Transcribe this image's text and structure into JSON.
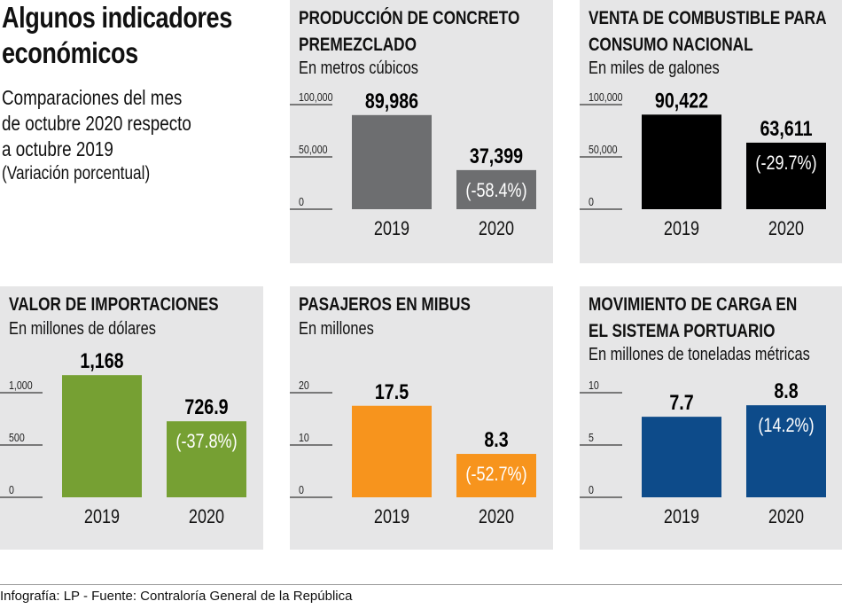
{
  "header": {
    "title_lines": [
      "Algunos indicadores",
      "económicos"
    ],
    "subtitle_lines": [
      "Comparaciones del mes",
      "de octubre 2020 respecto",
      "a octubre 2019"
    ],
    "note": "(Variación porcentual)"
  },
  "footer": "Infografía: LP - Fuente: Contraloría General de la República",
  "chart_data": [
    {
      "type": "bar",
      "title": "PRODUCCIÓN DE CONCRETO PREMEZCLADO",
      "title_lines": [
        "PRODUCCIÓN DE CONCRETO",
        "PREMEZCLADO"
      ],
      "ylabel": "En metros cúbicos",
      "categories": [
        "2019",
        "2020"
      ],
      "values": [
        89986,
        37399
      ],
      "value_labels": [
        "89,986",
        "37,399"
      ],
      "change": "(-58.4%)",
      "yticks": [
        0,
        50000,
        100000
      ],
      "ytick_labels": [
        "0",
        "50,000",
        "100,000"
      ],
      "ylim": [
        0,
        100000
      ],
      "color": "#6d6e70"
    },
    {
      "type": "bar",
      "title": "VENTA DE COMBUSTIBLE PARA CONSUMO NACIONAL",
      "title_lines": [
        "VENTA DE COMBUSTIBLE PARA",
        "CONSUMO NACIONAL"
      ],
      "ylabel": "En miles de galones",
      "categories": [
        "2019",
        "2020"
      ],
      "values": [
        90422,
        63611
      ],
      "value_labels": [
        "90,422",
        "63,611"
      ],
      "change": "(-29.7%)",
      "yticks": [
        0,
        50000,
        100000
      ],
      "ytick_labels": [
        "0",
        "50,000",
        "100,000"
      ],
      "ylim": [
        0,
        100000
      ],
      "color": "#000000"
    },
    {
      "type": "bar",
      "title": "VALOR DE IMPORTACIONES",
      "title_lines": [
        "VALOR DE IMPORTACIONES"
      ],
      "ylabel": "En millones de dólares",
      "categories": [
        "2019",
        "2020"
      ],
      "values": [
        1168,
        726.9
      ],
      "value_labels": [
        "1,168",
        "726.9"
      ],
      "change": "(-37.8%)",
      "yticks": [
        0,
        500,
        1000
      ],
      "ytick_labels": [
        "0",
        "500",
        "1,000"
      ],
      "ylim": [
        0,
        1000
      ],
      "color": "#76a033"
    },
    {
      "type": "bar",
      "title": "PASAJEROS EN MIBUS",
      "title_lines": [
        "PASAJEROS EN MIBUS"
      ],
      "ylabel": "En millones",
      "categories": [
        "2019",
        "2020"
      ],
      "values": [
        17.5,
        8.3
      ],
      "value_labels": [
        "17.5",
        "8.3"
      ],
      "change": "(-52.7%)",
      "yticks": [
        0,
        10,
        20
      ],
      "ytick_labels": [
        "0",
        "10",
        "20"
      ],
      "ylim": [
        0,
        20
      ],
      "color": "#f7941d"
    },
    {
      "type": "bar",
      "title": "MOVIMIENTO DE CARGA EN EL SISTEMA PORTUARIO",
      "title_lines": [
        "MOVIMIENTO DE CARGA EN",
        "EL SISTEMA PORTUARIO"
      ],
      "ylabel": "En millones de toneladas métricas",
      "categories": [
        "2019",
        "2020"
      ],
      "values": [
        7.7,
        8.8
      ],
      "value_labels": [
        "7.7",
        "8.8"
      ],
      "change": "(14.2%)",
      "yticks": [
        0,
        5,
        10
      ],
      "ytick_labels": [
        "0",
        "5",
        "10"
      ],
      "ylim": [
        0,
        10
      ],
      "color": "#0d4b8a"
    }
  ]
}
